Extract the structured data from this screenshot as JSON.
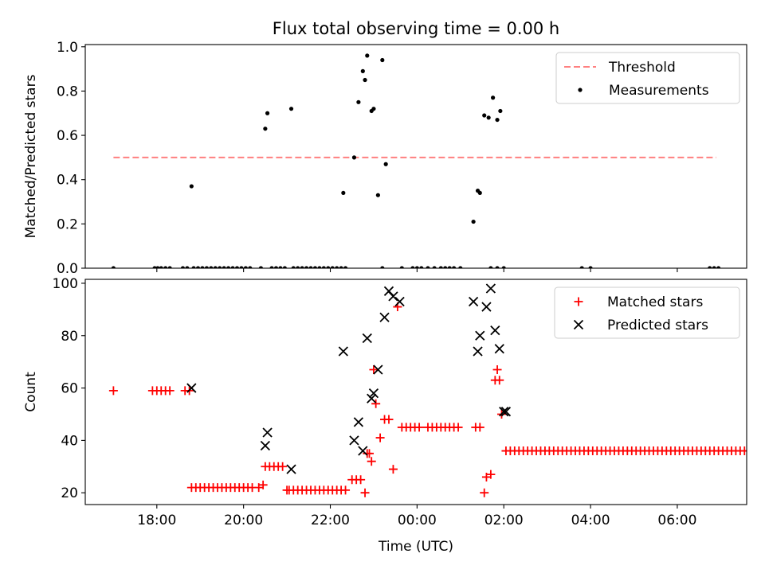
{
  "chart_data": {
    "title": "Flux total observing time = 0.00 h",
    "xlabel": "Time (UTC)",
    "x_ticks": [
      {
        "t": 18.0,
        "label": "18:00"
      },
      {
        "t": 20.0,
        "label": "20:00"
      },
      {
        "t": 22.0,
        "label": "22:00"
      },
      {
        "t": 24.0,
        "label": "00:00"
      },
      {
        "t": 26.0,
        "label": "02:00"
      },
      {
        "t": 28.0,
        "label": "04:00"
      },
      {
        "t": 30.0,
        "label": "06:00"
      }
    ],
    "xlim": [
      16.35,
      31.6
    ],
    "panels": [
      {
        "type": "scatter",
        "ylabel": "Matched/Predicted stars",
        "ylim": [
          0,
          1.01
        ],
        "y_ticks": [
          {
            "v": 0.0,
            "label": "0.0"
          },
          {
            "v": 0.2,
            "label": "0.2"
          },
          {
            "v": 0.4,
            "label": "0.4"
          },
          {
            "v": 0.6,
            "label": "0.6"
          },
          {
            "v": 0.8,
            "label": "0.8"
          },
          {
            "v": 1.0,
            "label": "1.0"
          }
        ],
        "legend": {
          "position": "top-right",
          "entries": [
            "Threshold",
            "Measurements"
          ]
        },
        "threshold": {
          "name": "Threshold",
          "y": 0.5,
          "x_range": [
            17.0,
            30.9
          ],
          "color": "#ff8080"
        },
        "series": [
          {
            "name": "Measurements",
            "color": "#000000",
            "x": [
              17.0,
              17.95,
              18.02,
              18.1,
              18.2,
              18.3,
              18.6,
              18.7,
              18.85,
              18.95,
              19.05,
              19.15,
              19.25,
              19.35,
              19.45,
              19.55,
              19.65,
              19.75,
              19.85,
              19.95,
              20.05,
              20.15,
              20.4,
              20.65,
              20.75,
              20.85,
              20.95,
              21.15,
              21.25,
              21.35,
              21.45,
              21.55,
              21.65,
              21.75,
              21.85,
              21.95,
              22.05,
              22.15,
              22.25,
              22.35,
              23.2,
              23.65,
              23.9,
              24.0,
              24.1,
              24.25,
              24.4,
              24.55,
              24.65,
              24.75,
              24.85,
              25.0,
              25.7,
              25.85,
              27.8,
              28.0,
              30.75,
              30.85,
              30.95,
              18.8,
              20.5,
              20.55,
              21.1,
              22.3,
              22.55,
              22.65,
              22.75,
              22.8,
              22.85,
              22.95,
              23.0,
              23.1,
              23.2,
              23.28,
              25.3,
              25.4,
              25.45,
              25.55,
              25.65,
              25.75,
              25.85,
              25.92,
              26.0
            ],
            "y": [
              0,
              0,
              0,
              0,
              0,
              0,
              0,
              0,
              0,
              0,
              0,
              0,
              0,
              0,
              0,
              0,
              0,
              0,
              0,
              0,
              0,
              0,
              0,
              0,
              0,
              0,
              0,
              0,
              0,
              0,
              0,
              0,
              0,
              0,
              0,
              0,
              0,
              0,
              0,
              0,
              0,
              0,
              0,
              0,
              0,
              0,
              0,
              0,
              0,
              0,
              0,
              0,
              0,
              0,
              0,
              0,
              0,
              0,
              0,
              0.37,
              0.63,
              0.7,
              0.72,
              0.34,
              0.5,
              0.75,
              0.89,
              0.85,
              0.96,
              0.71,
              0.72,
              0.33,
              0.94,
              0.47,
              0.21,
              0.35,
              0.34,
              0.69,
              0.68,
              0.77,
              0.67,
              0.71,
              0
            ]
          }
        ]
      },
      {
        "type": "scatter",
        "ylabel": "Count",
        "ylim": [
          15.5,
          101.5
        ],
        "y_ticks": [
          {
            "v": 20,
            "label": "20"
          },
          {
            "v": 40,
            "label": "40"
          },
          {
            "v": 60,
            "label": "60"
          },
          {
            "v": 80,
            "label": "80"
          },
          {
            "v": 100,
            "label": "100"
          }
        ],
        "legend": {
          "position": "top-right",
          "entries": [
            "Matched stars",
            "Predicted stars"
          ]
        },
        "series": [
          {
            "name": "Matched stars",
            "marker": "plus",
            "color": "#ff0000",
            "x": [
              17.0,
              17.9,
              18.0,
              18.1,
              18.2,
              18.3,
              18.65,
              18.75,
              18.8,
              18.9,
              19.0,
              19.1,
              19.2,
              19.3,
              19.4,
              19.5,
              19.6,
              19.7,
              19.8,
              19.9,
              20.0,
              20.1,
              20.2,
              20.35,
              20.45,
              20.5,
              20.6,
              20.7,
              20.8,
              20.9,
              21.0,
              21.05,
              21.15,
              21.25,
              21.35,
              21.45,
              21.55,
              21.65,
              21.75,
              21.85,
              21.95,
              22.05,
              22.15,
              22.25,
              22.35,
              22.5,
              22.6,
              22.7,
              22.8,
              22.85,
              22.9,
              22.95,
              23.0,
              23.05,
              23.15,
              23.25,
              23.35,
              23.45,
              23.55,
              23.65,
              23.75,
              23.85,
              23.95,
              24.05,
              24.25,
              24.35,
              24.45,
              24.55,
              24.65,
              24.75,
              24.85,
              24.95,
              25.35,
              25.45,
              25.55,
              25.6,
              25.7,
              25.8,
              25.85,
              25.9,
              25.95,
              26.05,
              26.15,
              26.25,
              26.35,
              26.45,
              26.55,
              26.65,
              26.75,
              26.85,
              26.95,
              27.05,
              27.15,
              27.25,
              27.35,
              27.45,
              27.55,
              27.65,
              27.75,
              27.85,
              27.95,
              28.05,
              28.15,
              28.25,
              28.35,
              28.45,
              28.55,
              28.65,
              28.75,
              28.85,
              28.95,
              29.05,
              29.15,
              29.25,
              29.35,
              29.45,
              29.55,
              29.65,
              29.75,
              29.85,
              29.95,
              30.05,
              30.15,
              30.25,
              30.35,
              30.45,
              30.55,
              30.65,
              30.75,
              30.85,
              30.95,
              31.05,
              31.15,
              31.25,
              31.35,
              31.45,
              31.55
            ],
            "y": [
              59,
              59,
              59,
              59,
              59,
              59,
              59,
              59,
              22,
              22,
              22,
              22,
              22,
              22,
              22,
              22,
              22,
              22,
              22,
              22,
              22,
              22,
              22,
              22,
              23,
              30,
              30,
              30,
              30,
              30,
              21,
              21,
              21,
              21,
              21,
              21,
              21,
              21,
              21,
              21,
              21,
              21,
              21,
              21,
              21,
              25,
              25,
              25,
              20,
              35,
              35,
              32,
              67,
              54,
              41,
              48,
              48,
              29,
              91,
              45,
              45,
              45,
              45,
              45,
              45,
              45,
              45,
              45,
              45,
              45,
              45,
              45,
              45,
              45,
              20,
              26,
              27,
              63,
              67,
              63,
              50,
              36,
              36,
              36,
              36,
              36,
              36,
              36,
              36,
              36,
              36,
              36,
              36,
              36,
              36,
              36,
              36,
              36,
              36,
              36,
              36,
              36,
              36,
              36,
              36,
              36,
              36,
              36,
              36,
              36,
              36,
              36,
              36,
              36,
              36,
              36,
              36,
              36,
              36,
              36,
              36,
              36,
              36,
              36,
              36,
              36,
              36,
              36,
              36,
              36,
              36,
              36,
              36,
              36,
              36,
              36,
              36
            ]
          },
          {
            "name": "Predicted stars",
            "marker": "x",
            "color": "#000000",
            "x": [
              18.8,
              20.5,
              20.55,
              21.1,
              22.3,
              22.55,
              22.65,
              22.75,
              22.85,
              22.95,
              23.0,
              23.1,
              23.25,
              23.35,
              23.45,
              23.6,
              25.3,
              25.4,
              25.45,
              25.6,
              25.7,
              25.8,
              25.9,
              26.0,
              26.05
            ],
            "y": [
              60,
              38,
              43,
              29,
              74,
              40,
              47,
              36,
              79,
              56,
              58,
              67,
              87,
              97,
              95,
              93,
              93,
              74,
              80,
              91,
              98,
              82,
              75,
              51,
              51
            ]
          }
        ]
      }
    ]
  }
}
